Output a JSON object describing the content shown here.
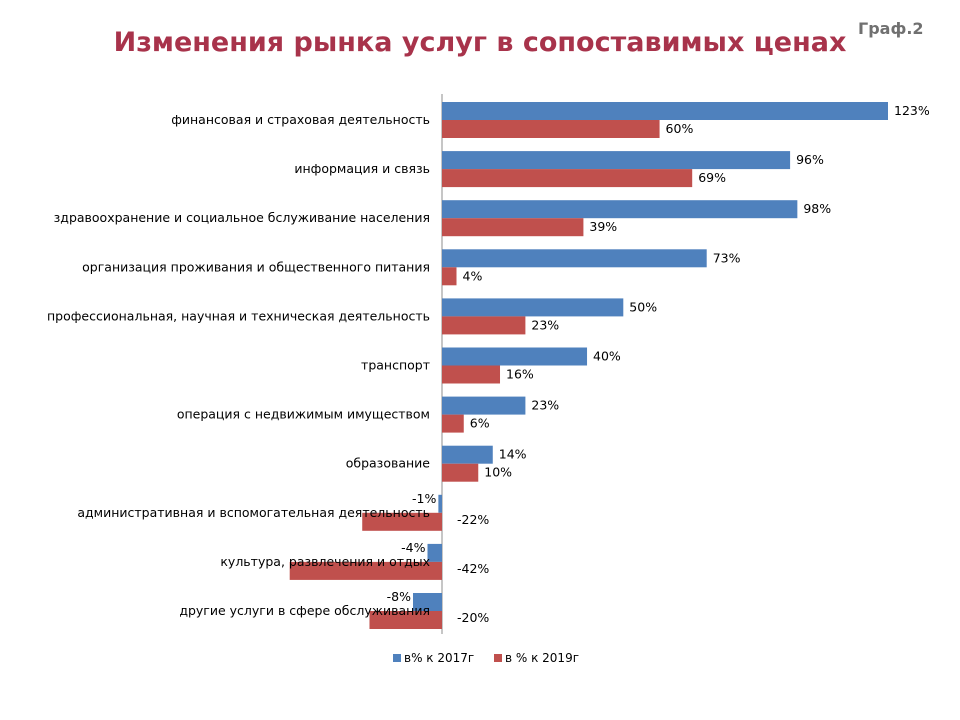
{
  "header": {
    "title": "Изменения рынка услуг в сопоставимых ценах",
    "badge": "Граф.2"
  },
  "colors": {
    "series_2017": "#4f81bd",
    "series_2019": "#c0504d",
    "title": "#a8334b"
  },
  "chart_data": {
    "type": "bar",
    "orientation": "horizontal",
    "title": "Изменения рынка услуг в сопоставимых ценах",
    "xlabel": "",
    "ylabel": "",
    "unit": "%",
    "legend": "bottom",
    "grid": false,
    "categories": [
      "финансовая и страховая деятельность",
      "информация и связь",
      "здравоохранение и социальное бслуживание населения",
      "организация проживания и общественного питания",
      "профессиональная, научная и техническая деятельность",
      "транспорт",
      "операция с недвижимым имуществом",
      "образование",
      "административная и вспомогательная деятельность",
      "культура, развлечения и отдых",
      "другие услуги в сфере обслуживания"
    ],
    "series": [
      {
        "name": "в% к 2017г",
        "values": [
          123,
          96,
          98,
          73,
          50,
          40,
          23,
          14,
          -1,
          -4,
          -8
        ],
        "labels": [
          "123%",
          "96%",
          "98%",
          "73%",
          "50%",
          "40%",
          "23%",
          "14%",
          "-1%",
          "-4%",
          "-8%"
        ]
      },
      {
        "name": "в % к 2019г",
        "values": [
          60,
          69,
          39,
          4,
          23,
          16,
          6,
          10,
          -22,
          -42,
          -20
        ],
        "labels": [
          "60%",
          "69%",
          "39%",
          "4%",
          "23%",
          "16%",
          "6%",
          "10%",
          "-22%",
          "-42%",
          "-20%"
        ]
      }
    ]
  }
}
